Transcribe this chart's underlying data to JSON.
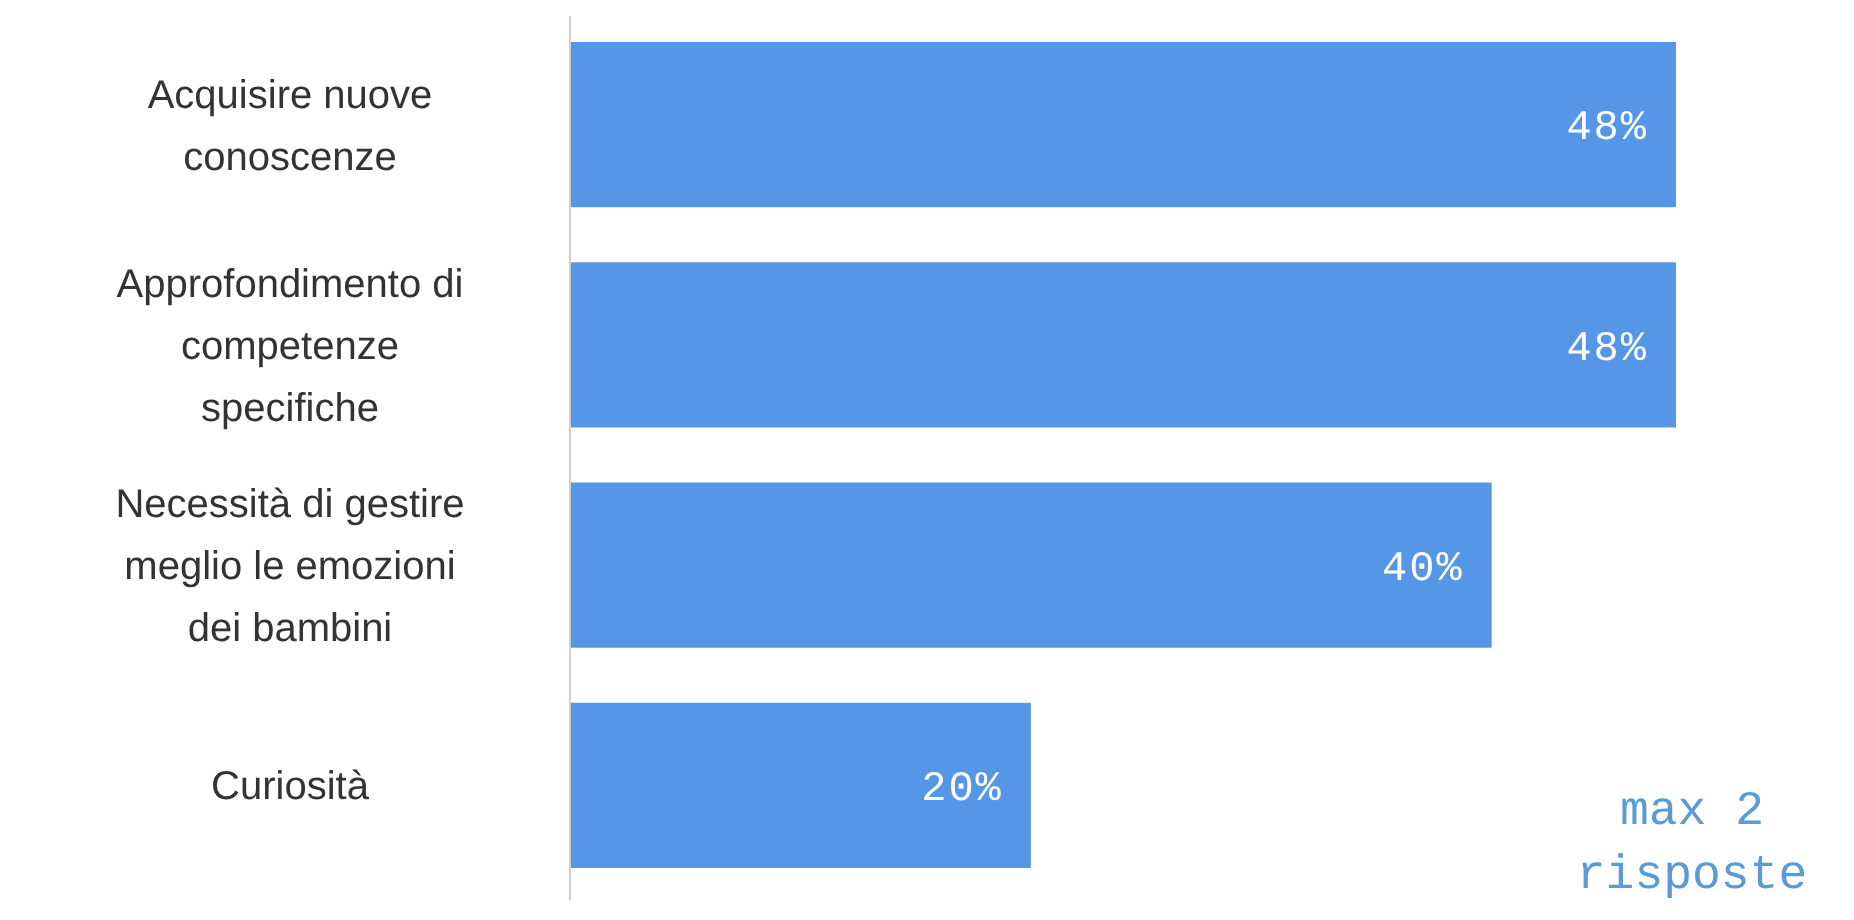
{
  "chart_data": {
    "type": "bar",
    "orientation": "horizontal",
    "categories": [
      "Acquisire nuove conoscenze",
      "Approfondimento di competenze specifiche",
      "Necessità di gestire meglio le emozioni dei bambini",
      "Curiosità"
    ],
    "values": [
      48,
      48,
      40,
      20
    ],
    "color": "#5596e6",
    "data_labels": true,
    "value_labels": [
      "48%",
      "48%",
      "40%",
      "20%"
    ],
    "annotations": [
      "max 2 risposte"
    ]
  }
}
